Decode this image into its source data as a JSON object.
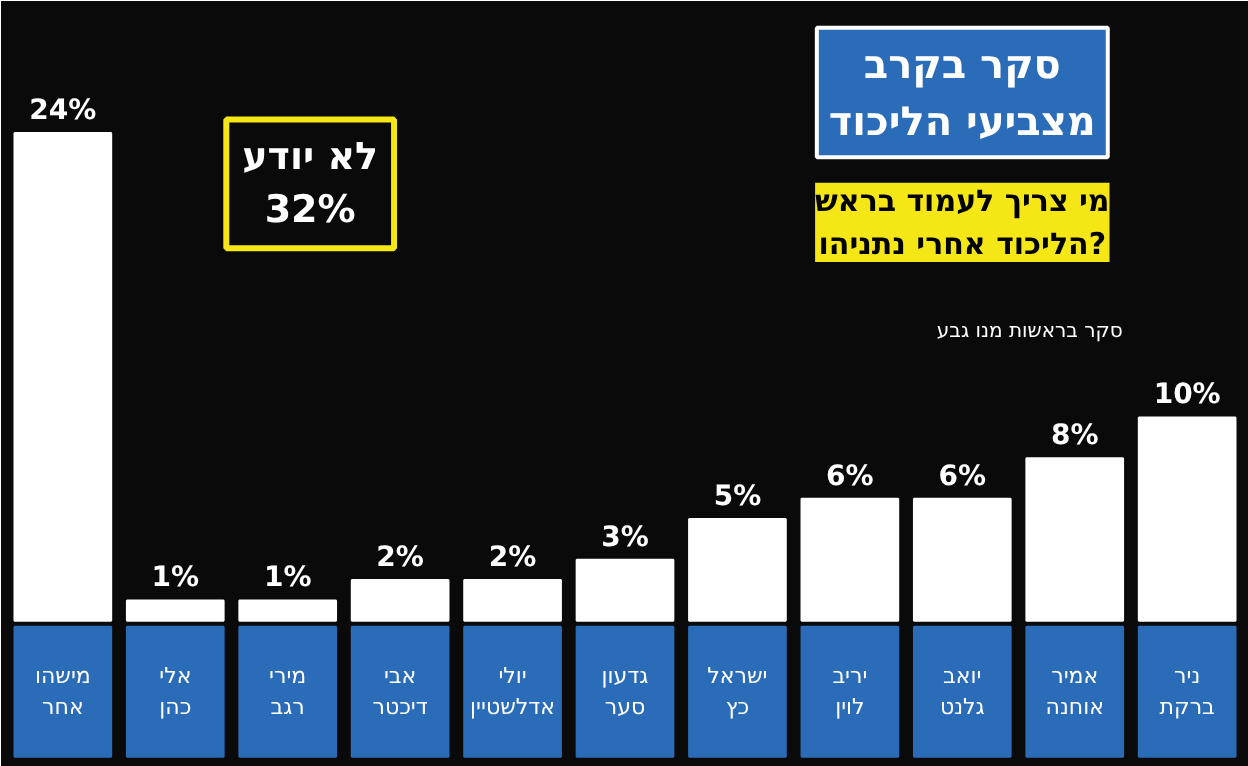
{
  "chart_data": {
    "type": "bar",
    "title": "סקר בקרב מצביעי הליכוד",
    "subtitle": "מי צריך לעמוד בראש הליכוד אחרי נתניהו?",
    "categories": [
      "מישהו אחר",
      "אלי כהן",
      "מירי רגב",
      "אבי דיכטר",
      "יולי אדלשטיין",
      "גדעון סער",
      "ישראל כץ",
      "יריב לוין",
      "יואב גלנט",
      "אמיר אוחנה",
      "ניר ברקת"
    ],
    "values": [
      24,
      1,
      1,
      2,
      2,
      3,
      5,
      6,
      6,
      8,
      10
    ],
    "value_labels": [
      "24%",
      "1%",
      "1%",
      "2%",
      "2%",
      "3%",
      "5%",
      "6%",
      "6%",
      "8%",
      "10%"
    ],
    "color": "#ffffff",
    "annotations": [
      "לא יודע 32%",
      "סקר בראשות מנו גבע"
    ],
    "grid": false
  }
}
